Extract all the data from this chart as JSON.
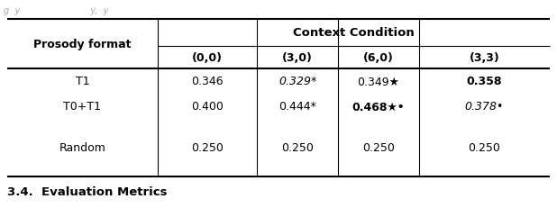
{
  "col_headers": [
    "Prosody format",
    "(0,0)",
    "(3,0)",
    "(6,0)",
    "(3,3)"
  ],
  "context_condition_label": "Context Condition",
  "rows": [
    {
      "label": "T1",
      "values": [
        {
          "text": "0.346",
          "bold": false,
          "italic": false
        },
        {
          "text": "0.329*",
          "bold": false,
          "italic": true
        },
        {
          "text": "0.349★",
          "bold": false,
          "italic": false
        },
        {
          "text": "0.358",
          "bold": true,
          "italic": false
        }
      ]
    },
    {
      "label": "T0+T1",
      "values": [
        {
          "text": "0.400",
          "bold": false,
          "italic": false
        },
        {
          "text": "0.444*",
          "bold": false,
          "italic": false
        },
        {
          "text": "0.468★•",
          "bold": true,
          "italic": false
        },
        {
          "text": "0.378•",
          "bold": false,
          "italic": true
        }
      ]
    },
    {
      "label": "Random",
      "values": [
        {
          "text": "0.250",
          "bold": false,
          "italic": false
        },
        {
          "text": "0.250",
          "bold": false,
          "italic": false
        },
        {
          "text": "0.250",
          "bold": false,
          "italic": false
        },
        {
          "text": "0.250",
          "bold": false,
          "italic": false
        }
      ]
    }
  ],
  "section_label": "3.4.  Evaluation Metrics",
  "bg_color": "#ffffff",
  "caption_text": "g  y                         y,  y",
  "caption_color": "#aaaaaa"
}
